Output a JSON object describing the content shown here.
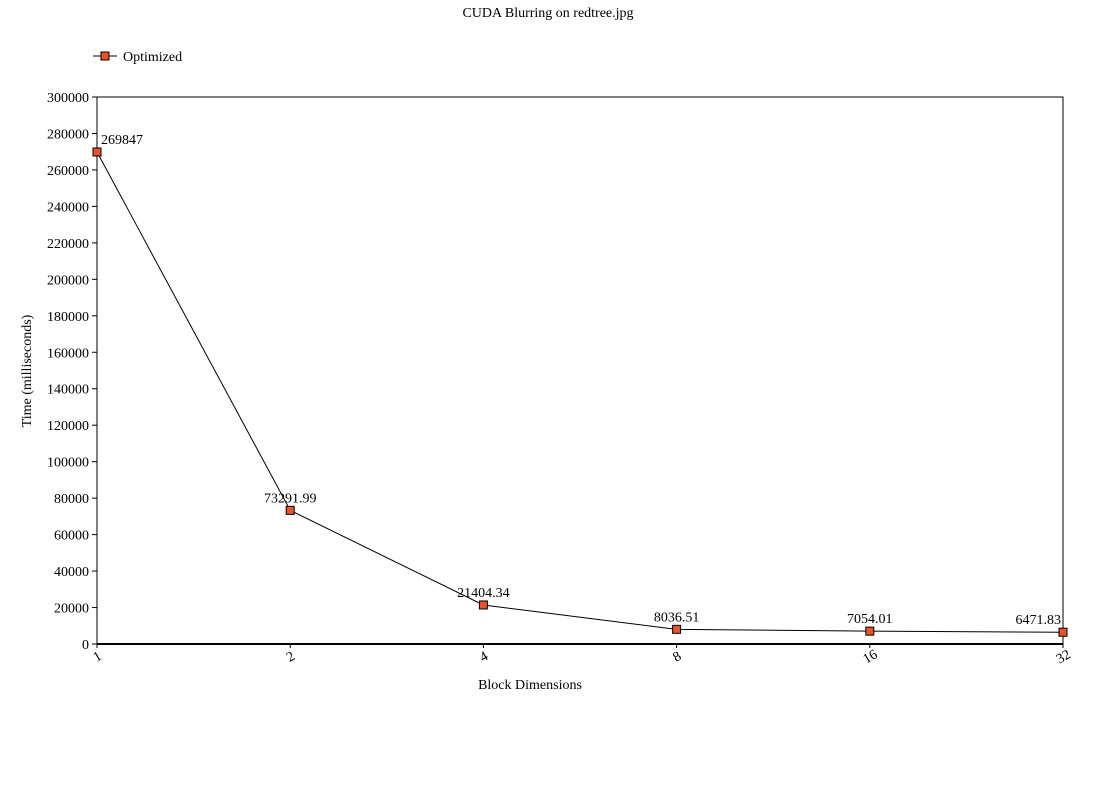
{
  "chart_data": {
    "type": "line",
    "title": "CUDA Blurring on redtree.jpg",
    "xlabel": "Block Dimensions",
    "ylabel": "Time (milliseconds)",
    "categories": [
      "1",
      "2",
      "4",
      "8",
      "16",
      "32"
    ],
    "series": [
      {
        "name": "Optimized",
        "values": [
          269847,
          73291.99,
          21404.34,
          8036.51,
          7054.01,
          6471.83
        ],
        "labels": [
          "269847",
          "73291.99",
          "21404.34",
          "8036.51",
          "7054.01",
          "6471.83"
        ],
        "color": "#e8532a"
      }
    ],
    "ylim": [
      0,
      300000
    ],
    "yticks": [
      0,
      20000,
      40000,
      60000,
      80000,
      100000,
      120000,
      140000,
      160000,
      180000,
      200000,
      220000,
      240000,
      260000,
      280000,
      300000
    ],
    "grid": false,
    "legend_position": "top-left"
  }
}
